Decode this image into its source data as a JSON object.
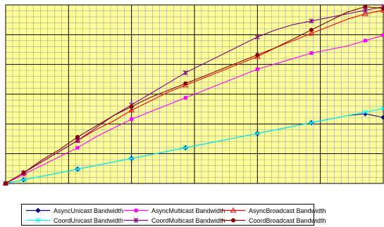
{
  "chart_data": {
    "type": "line",
    "title": "",
    "xlabel": "",
    "ylabel": "",
    "grid": true,
    "plot_background": "#ffff99",
    "x": [
      1,
      2,
      3,
      4,
      5,
      6,
      7,
      8,
      9,
      10,
      11,
      12,
      13,
      14,
      15,
      16,
      17,
      18,
      19,
      20,
      21,
      22
    ],
    "xlim": [
      1,
      22
    ],
    "ylim": [
      0,
      1
    ],
    "legend_position": "bottom",
    "series": [
      {
        "name": "AsyncUnicast Bandwidth",
        "color": "#000080",
        "marker": "diamond",
        "values": [
          0.0,
          0.02,
          0.04,
          0.06,
          0.08,
          0.1,
          0.12,
          0.14,
          0.16,
          0.18,
          0.2,
          0.22,
          0.24,
          0.26,
          0.28,
          0.3,
          0.32,
          0.34,
          0.36,
          0.38,
          0.39,
          0.37
        ]
      },
      {
        "name": "AsyncMulticast Bandwidth",
        "color": "#ff00ff",
        "marker": "square",
        "values": [
          0.0,
          0.05,
          0.1,
          0.15,
          0.2,
          0.26,
          0.31,
          0.36,
          0.4,
          0.44,
          0.48,
          0.52,
          0.56,
          0.6,
          0.64,
          0.67,
          0.7,
          0.73,
          0.75,
          0.77,
          0.8,
          0.83
        ]
      },
      {
        "name": "AsyncBroadcast Bandwidth",
        "color": "#ff0000",
        "marker": "triangle",
        "values": [
          0.0,
          0.06,
          0.12,
          0.18,
          0.24,
          0.3,
          0.35,
          0.41,
          0.46,
          0.51,
          0.55,
          0.59,
          0.63,
          0.67,
          0.71,
          0.76,
          0.8,
          0.84,
          0.88,
          0.92,
          0.95,
          0.97
        ]
      },
      {
        "name": "CoordUnicast Bandwidth",
        "color": "#00ffff",
        "marker": "x",
        "values": [
          0.0,
          0.02,
          0.04,
          0.06,
          0.08,
          0.1,
          0.12,
          0.14,
          0.16,
          0.18,
          0.2,
          0.22,
          0.24,
          0.26,
          0.28,
          0.3,
          0.32,
          0.34,
          0.36,
          0.38,
          0.4,
          0.42
        ]
      },
      {
        "name": "CoordMulticast Bandwidth",
        "color": "#800080",
        "marker": "star",
        "values": [
          0.0,
          0.06,
          0.12,
          0.18,
          0.24,
          0.31,
          0.38,
          0.44,
          0.5,
          0.56,
          0.62,
          0.67,
          0.72,
          0.77,
          0.82,
          0.86,
          0.89,
          0.91,
          0.93,
          0.95,
          0.97,
          0.99
        ]
      },
      {
        "name": "CoordBroadcast Bandwidth",
        "color": "#800000",
        "marker": "circle",
        "values": [
          0.0,
          0.06,
          0.13,
          0.19,
          0.26,
          0.32,
          0.38,
          0.43,
          0.48,
          0.52,
          0.56,
          0.6,
          0.64,
          0.68,
          0.72,
          0.76,
          0.81,
          0.86,
          0.91,
          0.96,
          0.99,
          0.98
        ]
      }
    ]
  }
}
